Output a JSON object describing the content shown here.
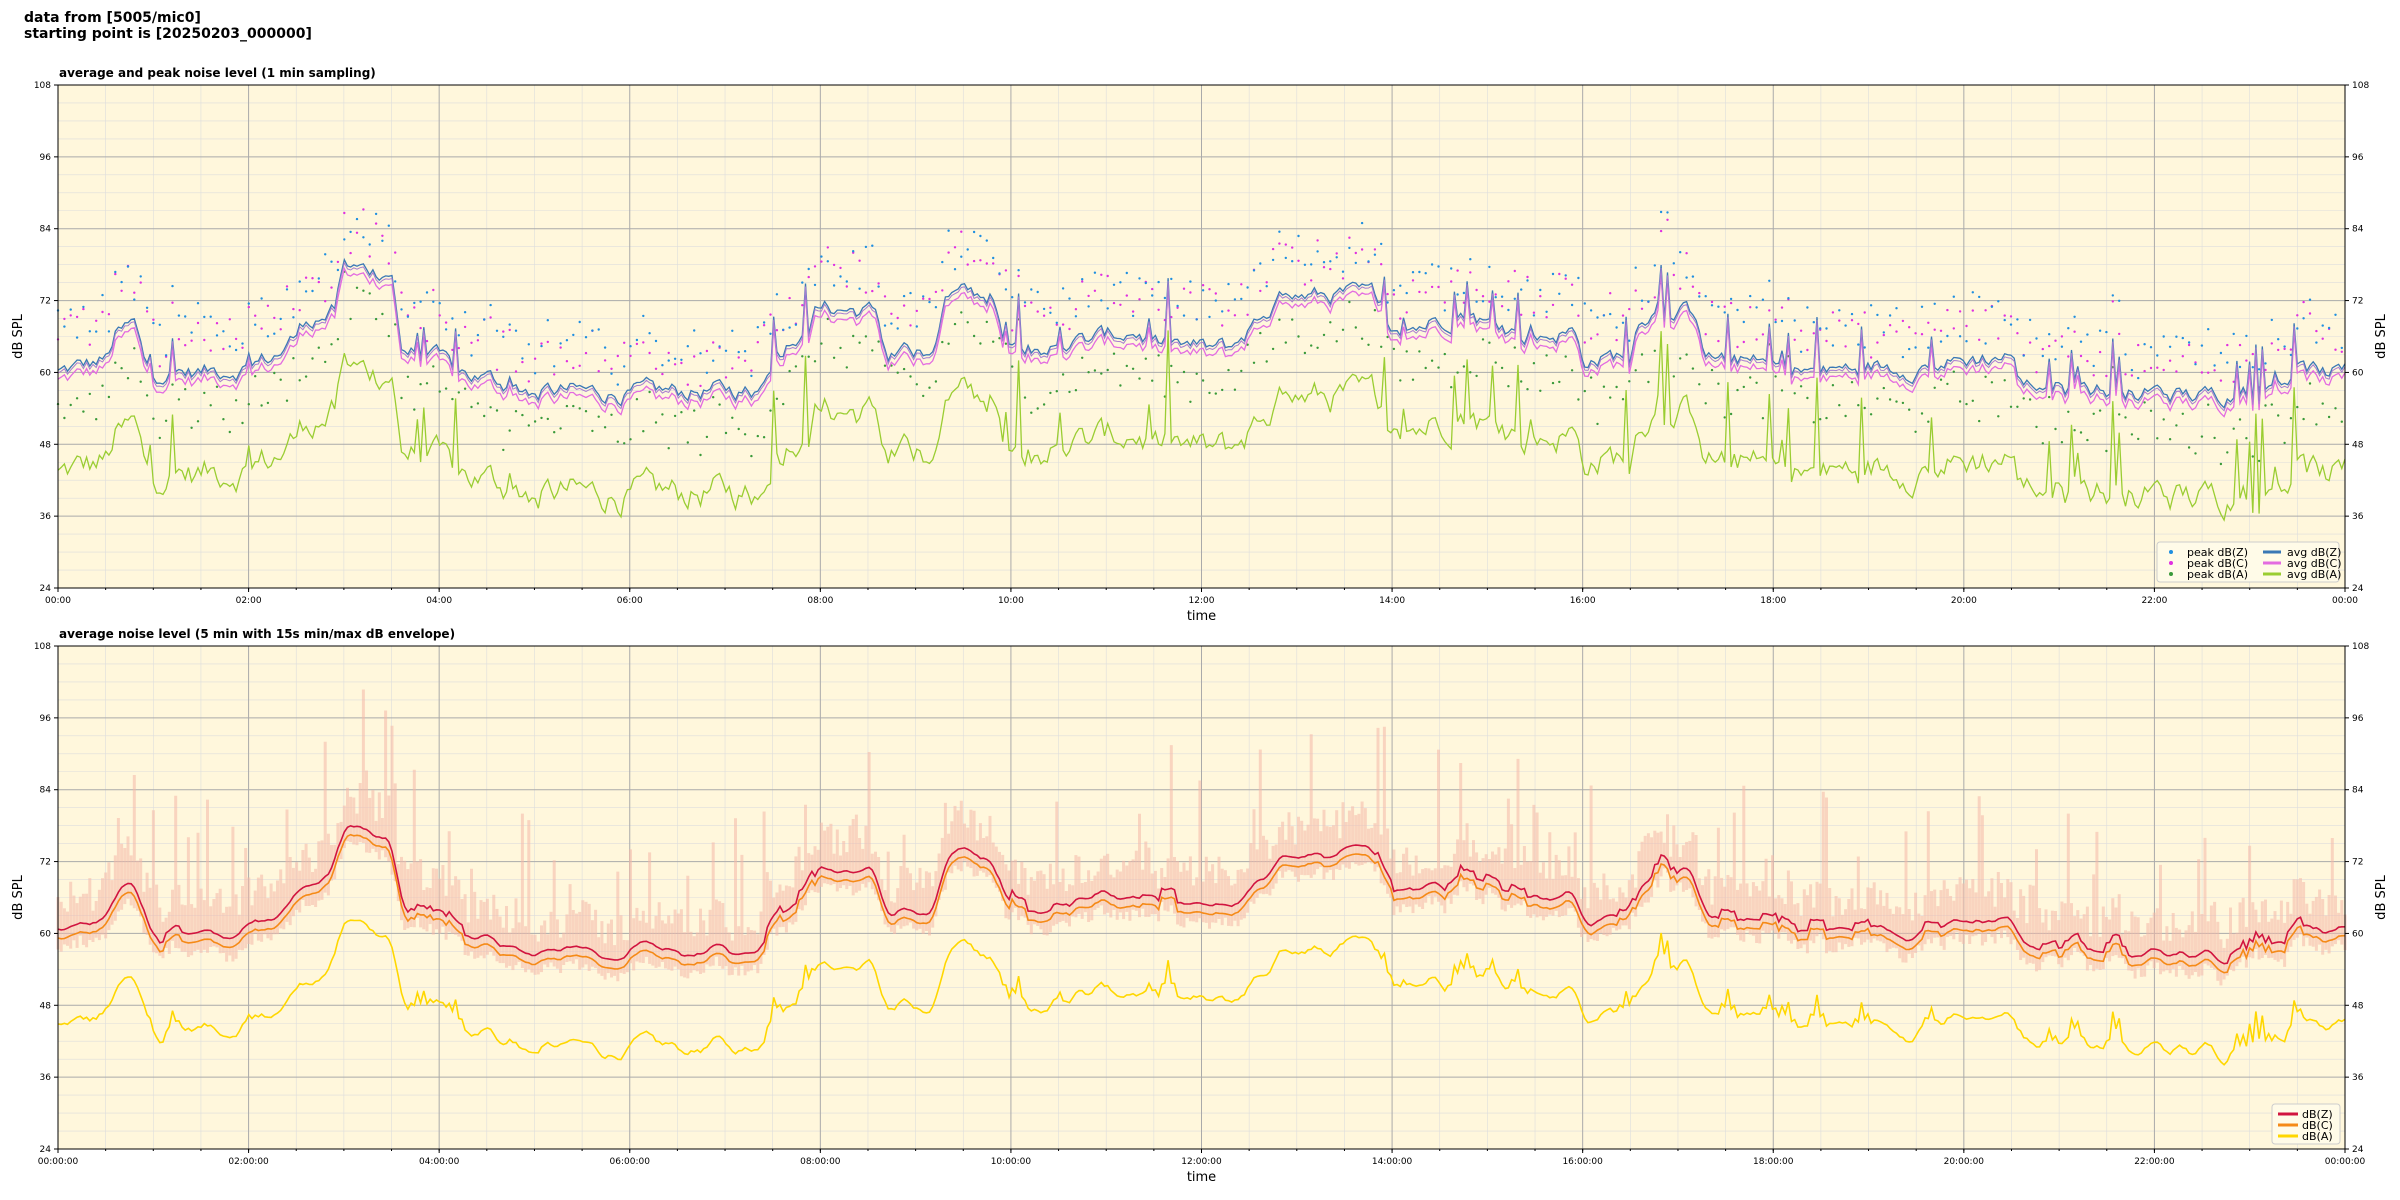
{
  "header": {
    "line1": "data from [5005/mic0]",
    "line2": "starting point is [20250203_000000]"
  },
  "colors": {
    "plot_bg": "#fff7dc",
    "grid_major": "#aaaaaa",
    "grid_minor": "#dddddd",
    "peak_z": "#1f8fe0",
    "peak_c": "#e030e0",
    "peak_a": "#3a9a3a",
    "avg_z": "#3a78b5",
    "avg_c": "#e36ce0",
    "avg_a": "#9acd32",
    "env": "#f4b8a8",
    "dbz": "#d1143f",
    "dbc": "#f58a17",
    "dba": "#ffd700"
  },
  "chart_data": [
    {
      "type": "line",
      "title": "average and peak noise level (1 min sampling)",
      "xlabel": "time",
      "ylabel": "dB SPL",
      "ylim": [
        24,
        108
      ],
      "yticks": [
        "24",
        "36",
        "48",
        "60",
        "72",
        "84",
        "96",
        "108"
      ],
      "xticks": [
        "00:00",
        "02:00",
        "04:00",
        "06:00",
        "08:00",
        "10:00",
        "12:00",
        "14:00",
        "16:00",
        "18:00",
        "20:00",
        "22:00",
        "00:00"
      ],
      "xrange_hours": [
        0,
        24
      ],
      "grid": true,
      "legend_position": "bottom-right",
      "legend": [
        "peak dB(Z)",
        "peak dB(C)",
        "peak dB(A)",
        "avg dB(Z)",
        "avg dB(C)",
        "avg dB(A)"
      ],
      "base_levels": {
        "x_hours": [
          0,
          0.5,
          0.6,
          0.8,
          0.9,
          1.0,
          1.5,
          2.0,
          2.3,
          2.5,
          2.6,
          2.9,
          3.0,
          3.5,
          3.6,
          4.0,
          4.2,
          5.0,
          6.0,
          7.0,
          7.3,
          7.4,
          7.5,
          7.6,
          8.0,
          8.6,
          8.7,
          9.0,
          9.2,
          9.3,
          9.8,
          9.9,
          10.5,
          11.0,
          11.3,
          11.5,
          12.0,
          12.3,
          12.8,
          12.9,
          13.5,
          13.9,
          14.0,
          14.5,
          14.8,
          15.0,
          15.5,
          15.9,
          16.0,
          16.5,
          16.6,
          17.2,
          17.3,
          18.0,
          18.5,
          19.0,
          19.5,
          20.0,
          20.5,
          20.6,
          21.0,
          21.5,
          22.0,
          22.5,
          23.0,
          23.5,
          24.0
        ],
        "avg_z": [
          60,
          62,
          66,
          68,
          62,
          60,
          60,
          61,
          63,
          66,
          69,
          70,
          77,
          77,
          64,
          62,
          60,
          57,
          56.5,
          57,
          57,
          60,
          63,
          64,
          71,
          70,
          62,
          63,
          65,
          73,
          73,
          66,
          64,
          66,
          67,
          65,
          64,
          64,
          72,
          72.5,
          73,
          72.5,
          66,
          69,
          70,
          68,
          66,
          67,
          62,
          63,
          70,
          70,
          63,
          61,
          60,
          61,
          61,
          62,
          63,
          58,
          58,
          57,
          56.5,
          56,
          57,
          60,
          60
        ]
      },
      "series_offsets_db": {
        "avg_z": 0,
        "avg_c": -1.5,
        "avg_a": -17,
        "peak_z": 5,
        "peak_c": 4,
        "peak_a": -8
      }
    },
    {
      "type": "line",
      "title": "average noise level (5 min with 15s min/max dB envelope)",
      "xlabel": "time",
      "ylabel": "dB SPL",
      "ylim": [
        24,
        108
      ],
      "yticks": [
        "24",
        "36",
        "48",
        "60",
        "72",
        "84",
        "96",
        "108"
      ],
      "xticks": [
        "00:00:00",
        "02:00:00",
        "04:00:00",
        "06:00:00",
        "08:00:00",
        "10:00:00",
        "12:00:00",
        "14:00:00",
        "16:00:00",
        "18:00:00",
        "20:00:00",
        "22:00:00",
        "00:00:00"
      ],
      "xrange_hours": [
        0,
        24
      ],
      "grid": true,
      "legend_position": "bottom-right",
      "legend": [
        "dB(Z)",
        "dB(C)",
        "dB(A)"
      ],
      "series_offsets_db": {
        "dbz": 0,
        "dbc": -1.5,
        "dba": -16
      }
    }
  ]
}
